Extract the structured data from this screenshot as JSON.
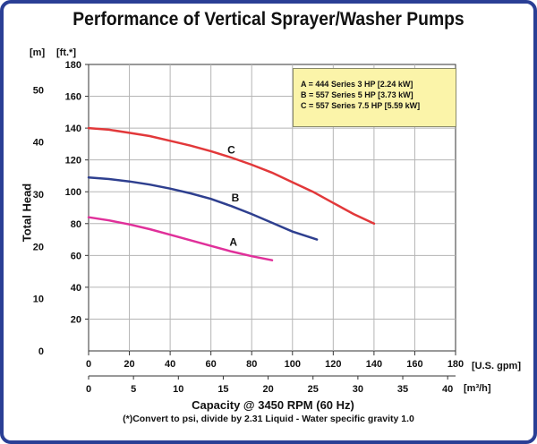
{
  "title": "Performance of Vertical Sprayer/Washer Pumps",
  "footnote": "(*)Convert to psi, divide by 2.31     Liquid - Water specific gravity 1.0",
  "units": {
    "y_left": "[m]",
    "y_right": "[ft.*]",
    "x_top": "[U.S. gpm]",
    "x_bottom": "[m³/h]"
  },
  "colors": {
    "frame": "#2a3f95",
    "grid": "#b5b5b5",
    "legend_bg": "#fbf4a9"
  },
  "chart_data": {
    "type": "line",
    "title": "Performance of Vertical Sprayer/Washer Pumps",
    "xlabel": "Capacity @ 3450 RPM (60 Hz)",
    "ylabel": "Total Head",
    "xlim": [
      0,
      180
    ],
    "ylim": [
      0,
      180
    ],
    "x_unit": "U.S. gpm",
    "y_unit": "ft.",
    "x_ticks": [
      0,
      20,
      40,
      60,
      80,
      100,
      120,
      140,
      160,
      180
    ],
    "y_ticks": [
      20,
      40,
      60,
      80,
      100,
      120,
      140,
      160,
      180
    ],
    "secondary_x": {
      "unit": "m³/h",
      "ticks": [
        0,
        5,
        10,
        15,
        20,
        25,
        30,
        35,
        40
      ],
      "range": [
        0,
        40.88
      ]
    },
    "secondary_y": {
      "unit": "m",
      "ticks": [
        0,
        10,
        20,
        30,
        40,
        50
      ],
      "range": [
        0,
        54.86
      ]
    },
    "grid": true,
    "legend_position": "top-right",
    "legend": [
      "A = 444 Series 3 HP [2.24 kW]",
      "B = 557 Series 5 HP [3.73 kW]",
      "C = 557 Series 7.5 HP [5.59 kW]"
    ],
    "series": [
      {
        "name": "A",
        "color": "#e0309a",
        "label_at": [
          71,
          66
        ],
        "points": [
          [
            0,
            84
          ],
          [
            10,
            82
          ],
          [
            20,
            79.5
          ],
          [
            30,
            76.5
          ],
          [
            40,
            73
          ],
          [
            50,
            69.5
          ],
          [
            60,
            66
          ],
          [
            70,
            62.5
          ],
          [
            80,
            59.5
          ],
          [
            90,
            57
          ]
        ]
      },
      {
        "name": "B",
        "color": "#2e3f8f",
        "label_at": [
          72,
          94
        ],
        "points": [
          [
            0,
            109
          ],
          [
            10,
            108
          ],
          [
            20,
            106.5
          ],
          [
            30,
            104.5
          ],
          [
            40,
            102
          ],
          [
            50,
            99
          ],
          [
            60,
            95.5
          ],
          [
            70,
            91
          ],
          [
            80,
            86
          ],
          [
            90,
            80.5
          ],
          [
            100,
            75
          ],
          [
            112,
            70
          ]
        ]
      },
      {
        "name": "C",
        "color": "#e2383a",
        "label_at": [
          70,
          124
        ],
        "points": [
          [
            0,
            140
          ],
          [
            10,
            139
          ],
          [
            20,
            137
          ],
          [
            30,
            135
          ],
          [
            40,
            132
          ],
          [
            50,
            129
          ],
          [
            60,
            125.5
          ],
          [
            70,
            121.5
          ],
          [
            80,
            117
          ],
          [
            90,
            112
          ],
          [
            100,
            106
          ],
          [
            110,
            100
          ],
          [
            120,
            93
          ],
          [
            130,
            86
          ],
          [
            140,
            80
          ]
        ]
      }
    ]
  }
}
